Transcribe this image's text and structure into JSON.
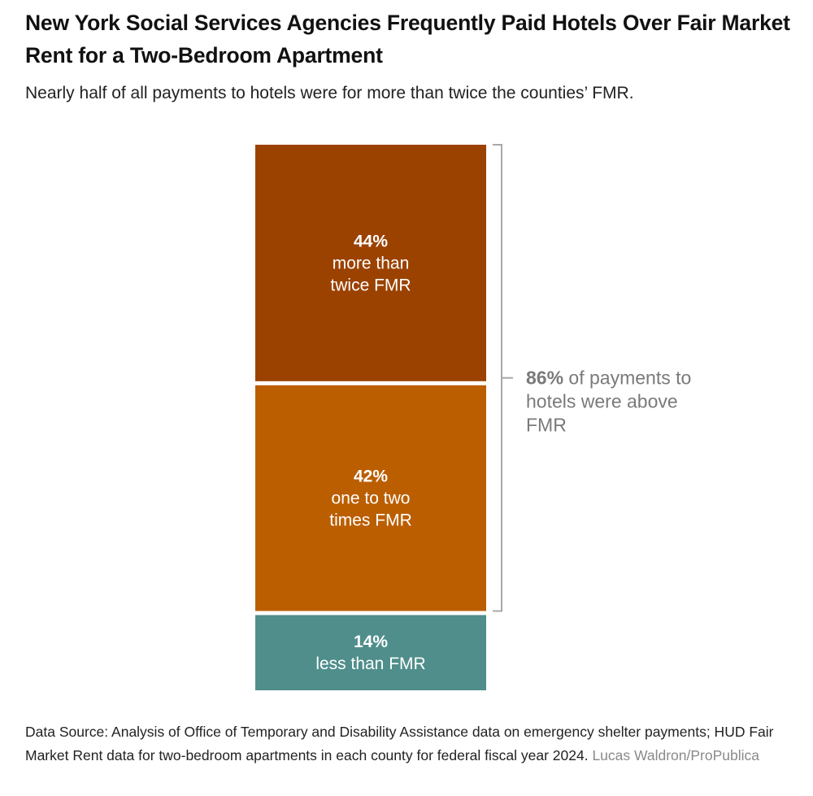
{
  "header": {
    "title": "New York Social Services Agencies Frequently Paid Hotels Over Fair Market Rent for a Two-Bedroom Apartment",
    "subtitle": "Nearly half of all payments to hotels were for more than twice the counties’ FMR."
  },
  "chart_data": {
    "type": "bar",
    "stacked": true,
    "unit": "%",
    "segments": [
      {
        "pct_label": "44%",
        "lines": [
          "more than",
          "twice FMR"
        ],
        "value": 44,
        "color": "#9b4200"
      },
      {
        "pct_label": "42%",
        "lines": [
          "one to two",
          "times FMR"
        ],
        "value": 42,
        "color": "#bb5e00"
      },
      {
        "pct_label": "14%",
        "lines": [
          "less than FMR"
        ],
        "value": 14,
        "color": "#4f8e8b"
      }
    ],
    "annotation": {
      "bold": "86%",
      "lines": [
        " of payments to",
        "hotels were above",
        "FMR"
      ],
      "spans_segments": [
        0,
        1
      ],
      "color": "#7a7a7a"
    }
  },
  "footer": {
    "source": "Data Source: Analysis of Office of Temporary and Disability Assistance data on emergency shelter payments; HUD Fair Market Rent data for two-bedroom apartments in each county for federal fiscal year 2024.",
    "credit": "Lucas Waldron/ProPublica"
  }
}
